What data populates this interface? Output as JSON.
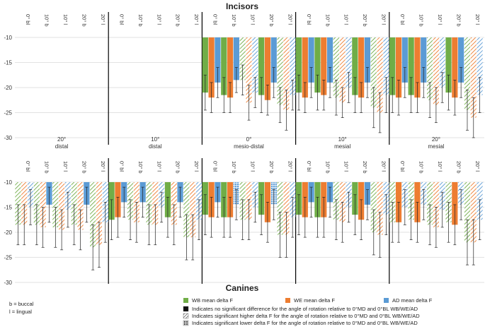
{
  "chart_data": {
    "type": "bar",
    "category_labels": [
      "0° bl",
      "10° b",
      "10° l",
      "20° b",
      "20° l"
    ],
    "group_labels": [
      {
        "angle": "20°",
        "direction": "distal"
      },
      {
        "angle": "10°",
        "direction": "distal"
      },
      {
        "angle": "0°",
        "direction": "mesio-distal"
      },
      {
        "angle": "10°",
        "direction": "mesial"
      },
      {
        "angle": "20°",
        "direction": "mesial"
      }
    ],
    "series_names": [
      "WB mean delta F",
      "WE mean delta F",
      "AD mean delta F"
    ],
    "series_colors": [
      "#70ad47",
      "#ed7d31",
      "#5b9bd5"
    ],
    "yticks": [
      -10,
      -15,
      -20,
      -25,
      -30
    ],
    "ylim": [
      -10,
      -30
    ],
    "panels": [
      {
        "title": "Incisors",
        "groups": [
          [],
          [],
          [
            {
              "v": [
                -21,
                -22,
                -19
              ],
              "e": [
                3.5,
                3.0,
                3.0
              ],
              "p": [
                "s",
                "s",
                "s"
              ]
            },
            {
              "v": [
                -21.5,
                -22,
                -18.5
              ],
              "e": [
                3.5,
                3.0,
                2.5
              ],
              "p": [
                "s",
                "s",
                "s"
              ]
            },
            {
              "v": [
                -18.5,
                -23,
                -21
              ],
              "e": [
                3.0,
                3.5,
                3.0
              ],
              "p": [
                "h",
                "h",
                "h"
              ]
            },
            {
              "v": [
                -21.5,
                -22.5,
                -19
              ],
              "e": [
                3.5,
                3.0,
                3.0
              ],
              "p": [
                "s",
                "s",
                "s"
              ]
            },
            {
              "v": [
                -23.5,
                -24.5,
                -21.5
              ],
              "e": [
                3.5,
                4.0,
                3.0
              ],
              "p": [
                "h",
                "h",
                "h"
              ]
            }
          ],
          [
            {
              "v": [
                -21,
                -22,
                -19
              ],
              "e": [
                3.5,
                3.0,
                3.0
              ],
              "p": [
                "s",
                "s",
                "s"
              ]
            },
            {
              "v": [
                -21,
                -21.5,
                -19
              ],
              "e": [
                3.5,
                3.0,
                3.0
              ],
              "p": [
                "s",
                "s",
                "s"
              ]
            },
            {
              "v": [
                -22,
                -23,
                -20
              ],
              "e": [
                3.5,
                3.0,
                3.0
              ],
              "p": [
                "h",
                "h",
                "h"
              ]
            },
            {
              "v": [
                -21.5,
                -22,
                -19
              ],
              "e": [
                3.5,
                3.0,
                3.0
              ],
              "p": [
                "s",
                "s",
                "s"
              ]
            },
            {
              "v": [
                -24,
                -25,
                -21.5
              ],
              "e": [
                4.0,
                4.0,
                3.5
              ],
              "p": [
                "h",
                "h",
                "h"
              ]
            }
          ],
          [
            {
              "v": [
                -21.5,
                -22,
                -19
              ],
              "e": [
                3.5,
                3.5,
                3.0
              ],
              "p": [
                "s",
                "s",
                "s"
              ]
            },
            {
              "v": [
                -21.5,
                -22,
                -19
              ],
              "e": [
                3.5,
                3.0,
                3.0
              ],
              "p": [
                "s",
                "s",
                "s"
              ]
            },
            {
              "v": [
                -22.5,
                -23.5,
                -20
              ],
              "e": [
                3.5,
                3.5,
                3.0
              ],
              "p": [
                "h",
                "h",
                "h"
              ]
            },
            {
              "v": [
                -21,
                -22,
                -19
              ],
              "e": [
                3.5,
                3.5,
                3.0
              ],
              "p": [
                "s",
                "s",
                "s"
              ]
            },
            {
              "v": [
                -24.5,
                -26,
                -21.5
              ],
              "e": [
                4.0,
                4.0,
                3.5
              ],
              "p": [
                "h",
                "h",
                "h"
              ]
            }
          ]
        ]
      },
      {
        "title": "Canines",
        "groups": [
          [
            {
              "v": [
                -18.5,
                -18.5,
                -15
              ],
              "e": [
                4.0,
                4.0,
                3.5
              ],
              "p": [
                "h",
                "h",
                "h"
              ]
            },
            {
              "v": [
                -18.5,
                -19,
                -14.5
              ],
              "e": [
                4.0,
                4.0,
                3.5
              ],
              "p": [
                "h",
                "h",
                "s"
              ]
            },
            {
              "v": [
                -19,
                -19.5,
                -15.5
              ],
              "e": [
                4.0,
                4.0,
                3.5
              ],
              "p": [
                "h",
                "h",
                "h"
              ]
            },
            {
              "v": [
                -18.5,
                -19.5,
                -14.5
              ],
              "e": [
                4.0,
                4.0,
                3.5
              ],
              "p": [
                "h",
                "h",
                "s"
              ]
            },
            {
              "v": [
                -23,
                -22.5,
                -18
              ],
              "e": [
                4.5,
                4.5,
                4.0
              ],
              "p": [
                "h",
                "h",
                "h"
              ]
            }
          ],
          [
            {
              "v": [
                -17.5,
                -17,
                -14
              ],
              "e": [
                4.0,
                4.0,
                3.0
              ],
              "p": [
                "s",
                "s",
                "s"
              ]
            },
            {
              "v": [
                -17.5,
                -18,
                -14
              ],
              "e": [
                4.0,
                4.0,
                3.0
              ],
              "p": [
                "h",
                "h",
                "s"
              ]
            },
            {
              "v": [
                -18.5,
                -18.5,
                -15
              ],
              "e": [
                4.0,
                4.0,
                3.0
              ],
              "p": [
                "h",
                "h",
                "h"
              ]
            },
            {
              "v": [
                -17,
                -18.5,
                -14
              ],
              "e": [
                4.0,
                4.0,
                3.0
              ],
              "p": [
                "s",
                "h",
                "s"
              ]
            },
            {
              "v": [
                -21,
                -21,
                -17.5
              ],
              "e": [
                4.5,
                4.5,
                4.0
              ],
              "p": [
                "h",
                "h",
                "h"
              ]
            }
          ],
          [
            {
              "v": [
                -16.5,
                -17,
                -14
              ],
              "e": [
                4.0,
                4.0,
                3.0
              ],
              "p": [
                "s",
                "s",
                "s"
              ]
            },
            {
              "v": [
                -17,
                -17,
                -14.5
              ],
              "e": [
                4.0,
                4.0,
                3.0
              ],
              "p": [
                "s",
                "s",
                "l"
              ]
            },
            {
              "v": [
                -17.5,
                -17.5,
                -15
              ],
              "e": [
                4.0,
                4.0,
                3.0
              ],
              "p": [
                "h",
                "h",
                "h"
              ]
            },
            {
              "v": [
                -16.5,
                -18,
                -14.5
              ],
              "e": [
                4.0,
                4.0,
                3.0
              ],
              "p": [
                "s",
                "s",
                "l"
              ]
            },
            {
              "v": [
                -20.5,
                -20.5,
                -17
              ],
              "e": [
                4.5,
                4.5,
                4.0
              ],
              "p": [
                "h",
                "h",
                "h"
              ]
            }
          ],
          [
            {
              "v": [
                -16.5,
                -17,
                -14
              ],
              "e": [
                4.0,
                4.0,
                3.0
              ],
              "p": [
                "s",
                "s",
                "s"
              ]
            },
            {
              "v": [
                -17,
                -17,
                -14
              ],
              "e": [
                4.0,
                4.0,
                3.0
              ],
              "p": [
                "s",
                "s",
                "s"
              ]
            },
            {
              "v": [
                -17.5,
                -18,
                -15
              ],
              "e": [
                4.0,
                4.0,
                3.0
              ],
              "p": [
                "h",
                "h",
                "h"
              ]
            },
            {
              "v": [
                -16.5,
                -17.5,
                -14.5
              ],
              "e": [
                4.0,
                4.0,
                3.0
              ],
              "p": [
                "s",
                "s",
                "s"
              ]
            },
            {
              "v": [
                -20,
                -20.5,
                -16.5
              ],
              "e": [
                4.5,
                4.5,
                4.0
              ],
              "p": [
                "h",
                "h",
                "h"
              ]
            }
          ],
          [
            {
              "v": [
                -18,
                -18,
                -15
              ],
              "e": [
                4.0,
                4.0,
                3.5
              ],
              "p": [
                "h",
                "s",
                "h"
              ]
            },
            {
              "v": [
                -17.5,
                -18,
                -14.5
              ],
              "e": [
                4.0,
                4.0,
                3.0
              ],
              "p": [
                "h",
                "s",
                "h"
              ]
            },
            {
              "v": [
                -18.5,
                -19,
                -15.5
              ],
              "e": [
                4.0,
                4.0,
                3.5
              ],
              "p": [
                "h",
                "h",
                "h"
              ]
            },
            {
              "v": [
                -18,
                -18.5,
                -14.5
              ],
              "e": [
                4.0,
                4.0,
                3.0
              ],
              "p": [
                "h",
                "s",
                "h"
              ]
            },
            {
              "v": [
                -22,
                -22,
                -17.5
              ],
              "e": [
                4.5,
                4.5,
                4.0
              ],
              "p": [
                "h",
                "h",
                "h"
              ]
            }
          ]
        ]
      }
    ],
    "legend": {
      "series": [
        "WB mean delta F",
        "WE mean delta F",
        "AD mean delta F"
      ],
      "patterns": [
        "Indicates no significant difference for the angle of rotation relative to 0°MD and 0°BL WB/WE/AD",
        "Indicates significant higher delta F for the angle of rotation relative to 0°MD and 0°BL WB/WE/AD",
        "Indicates significant lower delta F for the angle of rotation relative to 0°MD and 0°BL WB/WE/AD"
      ]
    },
    "notes": [
      "b = buccal",
      "l = lingual"
    ]
  }
}
